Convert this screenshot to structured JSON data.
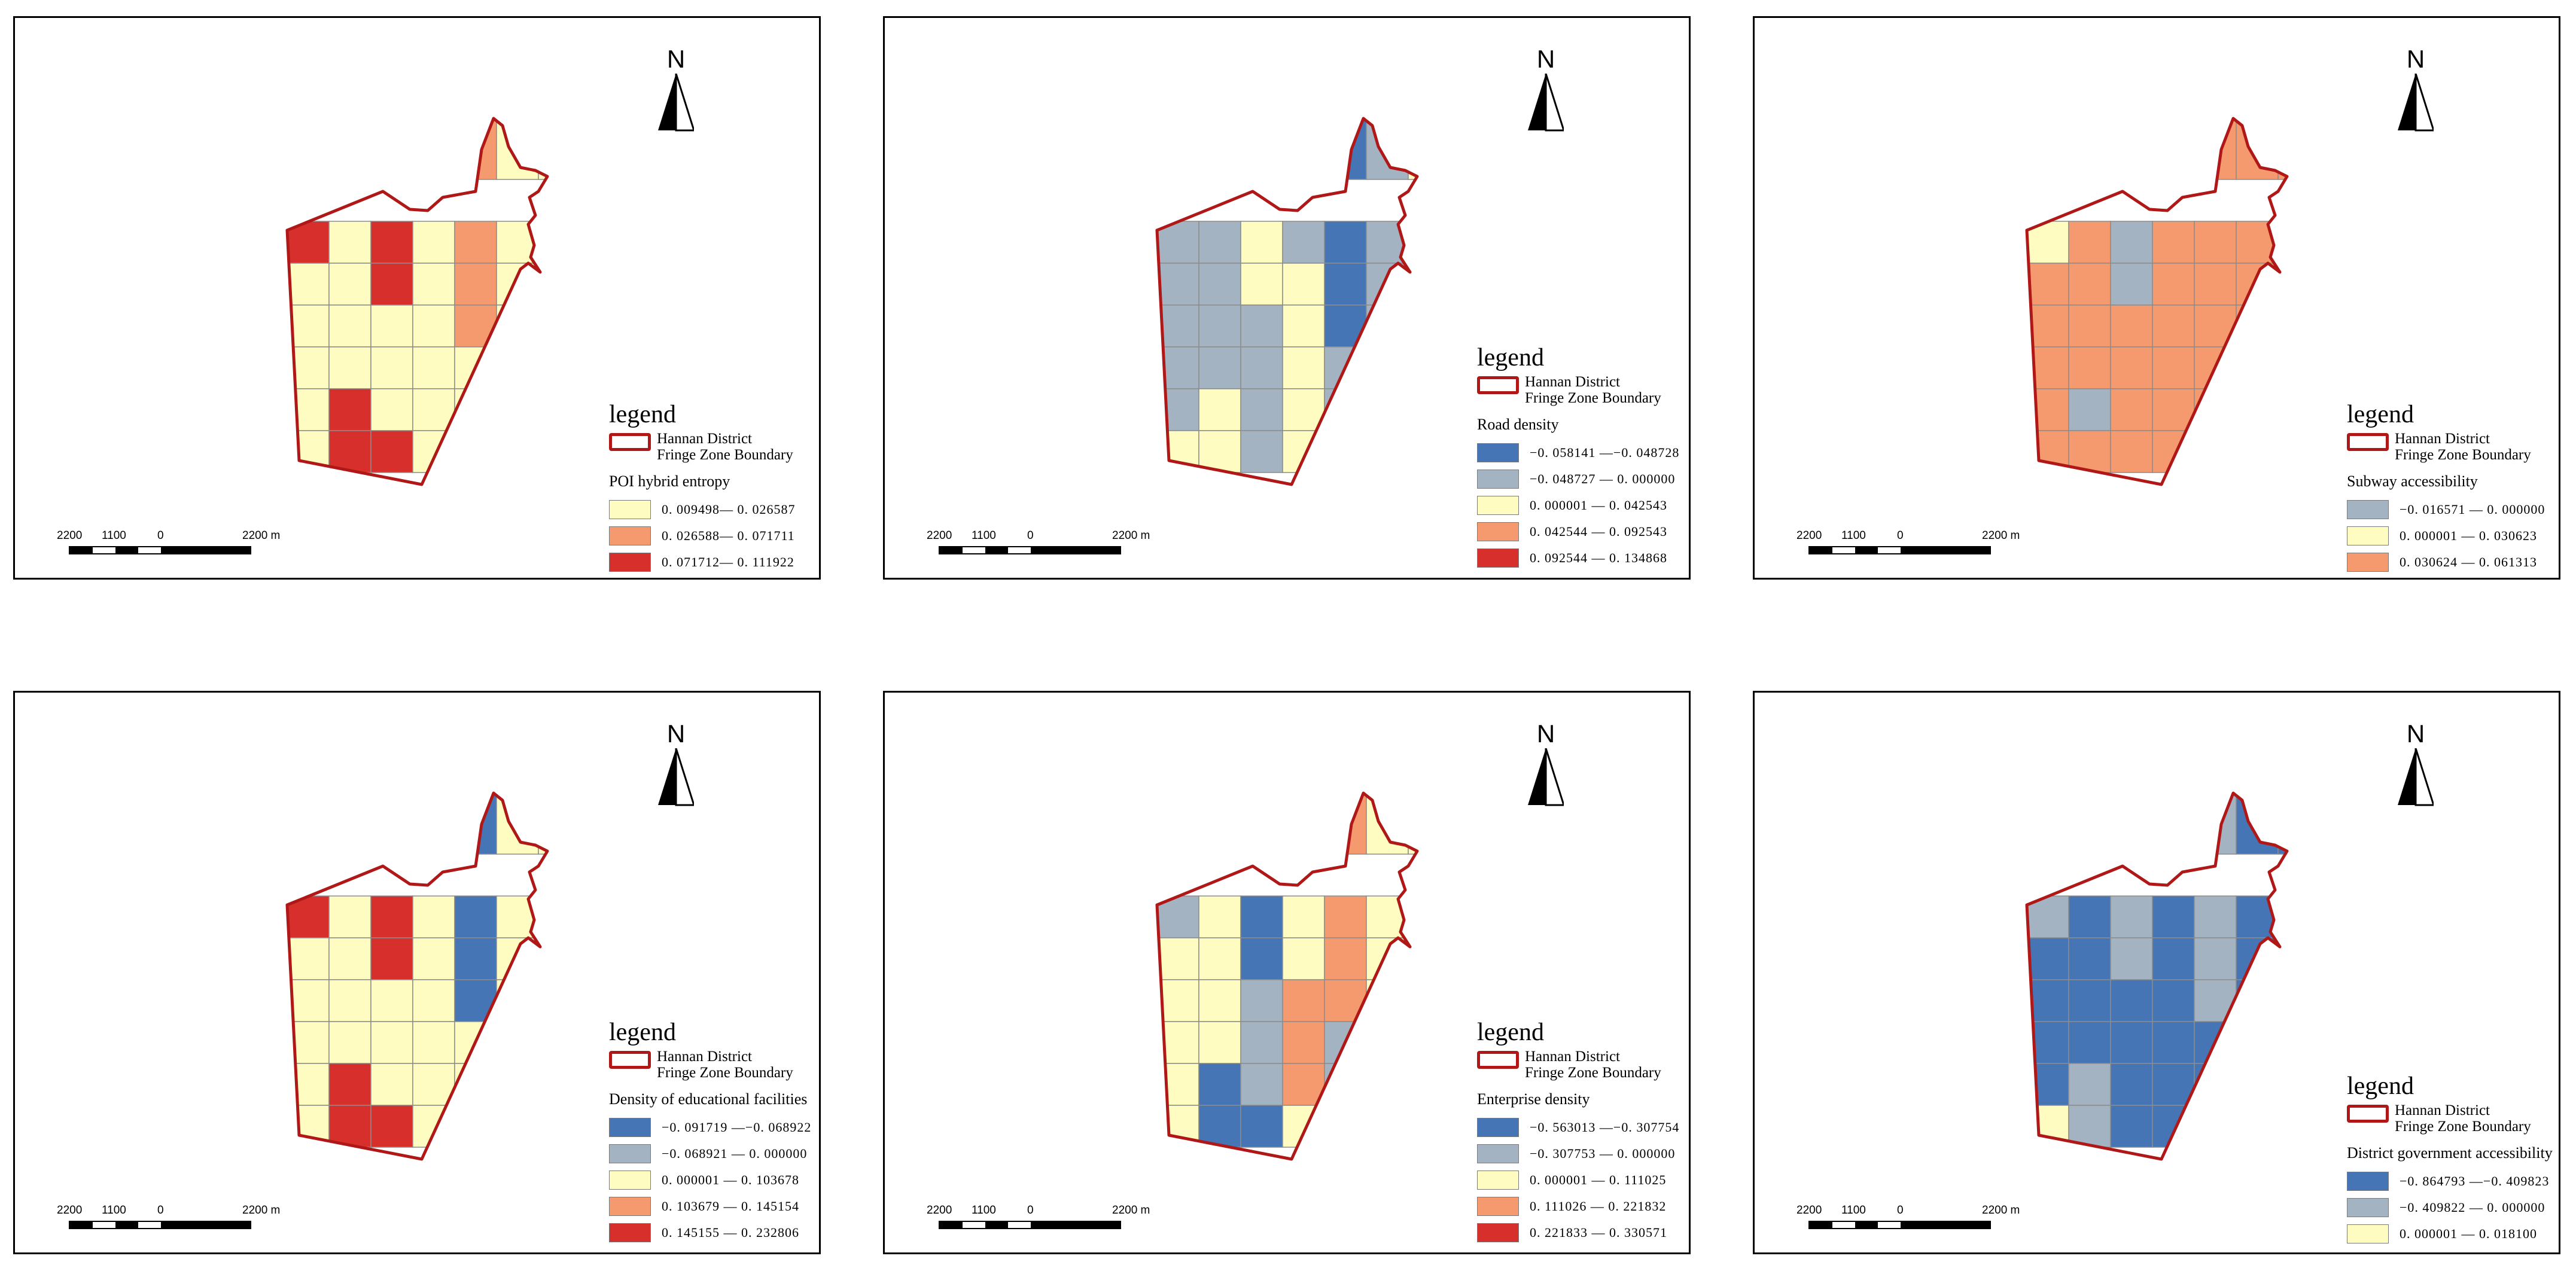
{
  "common": {
    "north_label": "N",
    "legend_title": "legend",
    "boundary_label_line1": "Hannan District",
    "boundary_label_line2": "Fringe Zone Boundary",
    "boundary_color": "#b01818",
    "scale_labels": [
      "2200",
      "1100",
      "0",
      "2200 m"
    ]
  },
  "colors": {
    "dark_blue": "#4575b4",
    "grey_blue": "#a4b3c1",
    "light_yellow": "#fefcc1",
    "salmon": "#f59a6e",
    "red": "#d7302c"
  },
  "panels": [
    {
      "variable": "POI hybrid entropy",
      "classes": [
        {
          "label": "0. 009498— 0. 026587",
          "color": "#fefcc1"
        },
        {
          "label": "0. 026588— 0. 071711",
          "color": "#f59a6e"
        },
        {
          "label": "0. 071712— 0. 111922",
          "color": "#d7302c"
        }
      ],
      "grid": [
        [
          "x",
          "x",
          "x",
          "x",
          "c",
          "c",
          "c",
          "c",
          "c"
        ],
        [
          "R",
          "y",
          "R",
          "y",
          "S",
          "y",
          "y",
          "y",
          "y"
        ],
        [
          "y",
          "y",
          "R",
          "y",
          "S",
          "y",
          "y",
          "y",
          "x"
        ],
        [
          "y",
          "y",
          "y",
          "y",
          "S",
          "y",
          "y",
          "x",
          "x"
        ],
        [
          "y",
          "y",
          "y",
          "y",
          "y",
          "y",
          "x",
          "x",
          "x"
        ],
        [
          "y",
          "R",
          "y",
          "y",
          "y",
          "x",
          "x",
          "x",
          "x"
        ],
        [
          "y",
          "R",
          "R",
          "y",
          "x",
          "x",
          "x",
          "x",
          "x"
        ]
      ]
    },
    {
      "variable": "Road density",
      "classes": [
        {
          "label": "−0. 058141 —−0. 048728",
          "color": "#4575b4"
        },
        {
          "label": "−0. 048727 — 0. 000000",
          "color": "#a4b3c1"
        },
        {
          "label": "0. 000001 — 0. 042543",
          "color": "#fefcc1"
        },
        {
          "label": "0. 042544 — 0. 092543",
          "color": "#f59a6e"
        },
        {
          "label": "0. 092544 — 0. 134868",
          "color": "#d7302c"
        }
      ],
      "grid": [
        [
          "x",
          "x",
          "x",
          "x",
          "c",
          "c",
          "c",
          "c",
          "c"
        ],
        [
          "G",
          "G",
          "y",
          "G",
          "B",
          "G",
          "y",
          "y",
          "y"
        ],
        [
          "G",
          "G",
          "y",
          "y",
          "B",
          "G",
          "y",
          "y",
          "x"
        ],
        [
          "G",
          "G",
          "G",
          "y",
          "B",
          "G",
          "y",
          "x",
          "x"
        ],
        [
          "G",
          "G",
          "G",
          "y",
          "G",
          "B",
          "x",
          "x",
          "x"
        ],
        [
          "G",
          "y",
          "G",
          "y",
          "G",
          "x",
          "x",
          "x",
          "x"
        ],
        [
          "y",
          "y",
          "G",
          "y",
          "x",
          "x",
          "x",
          "x",
          "x"
        ]
      ]
    },
    {
      "variable": "Subway accessibility",
      "classes": [
        {
          "label": "−0. 016571 — 0. 000000",
          "color": "#a4b3c1"
        },
        {
          "label": "0. 000001 — 0. 030623",
          "color": "#fefcc1"
        },
        {
          "label": "0. 030624 — 0. 061313",
          "color": "#f59a6e"
        }
      ],
      "grid": [
        [
          "x",
          "x",
          "x",
          "x",
          "c",
          "c",
          "c",
          "c",
          "c"
        ],
        [
          "y",
          "S",
          "G",
          "S",
          "S",
          "S",
          "S",
          "S",
          "S"
        ],
        [
          "S",
          "S",
          "G",
          "S",
          "S",
          "S",
          "S",
          "S",
          "x"
        ],
        [
          "S",
          "S",
          "S",
          "S",
          "S",
          "S",
          "S",
          "x",
          "x"
        ],
        [
          "S",
          "S",
          "S",
          "S",
          "S",
          "S",
          "x",
          "x",
          "x"
        ],
        [
          "S",
          "G",
          "S",
          "S",
          "S",
          "x",
          "x",
          "x",
          "x"
        ],
        [
          "S",
          "S",
          "S",
          "S",
          "x",
          "x",
          "x",
          "x",
          "x"
        ]
      ]
    },
    {
      "variable": "Density of educational facilities",
      "classes": [
        {
          "label": "−0. 091719 —−0. 068922",
          "color": "#4575b4"
        },
        {
          "label": "−0. 068921 — 0. 000000",
          "color": "#a4b3c1"
        },
        {
          "label": "0. 000001 — 0. 103678",
          "color": "#fefcc1"
        },
        {
          "label": "0. 103679 — 0. 145154",
          "color": "#f59a6e"
        },
        {
          "label": "0. 145155 — 0. 232806",
          "color": "#d7302c"
        }
      ],
      "grid": [
        [
          "x",
          "x",
          "x",
          "x",
          "c",
          "c",
          "c",
          "c",
          "c"
        ],
        [
          "R",
          "y",
          "R",
          "y",
          "B",
          "y",
          "y",
          "y",
          "B"
        ],
        [
          "y",
          "y",
          "R",
          "y",
          "B",
          "y",
          "y",
          "y",
          "x"
        ],
        [
          "y",
          "y",
          "y",
          "y",
          "B",
          "y",
          "y",
          "x",
          "x"
        ],
        [
          "y",
          "y",
          "y",
          "y",
          "y",
          "y",
          "x",
          "x",
          "x"
        ],
        [
          "y",
          "R",
          "y",
          "y",
          "y",
          "x",
          "x",
          "x",
          "x"
        ],
        [
          "y",
          "R",
          "R",
          "y",
          "x",
          "x",
          "x",
          "x",
          "x"
        ]
      ]
    },
    {
      "variable": "Enterprise density",
      "classes": [
        {
          "label": "−0. 563013 —−0. 307754",
          "color": "#4575b4"
        },
        {
          "label": "−0. 307753 — 0. 000000",
          "color": "#a4b3c1"
        },
        {
          "label": "0. 000001 — 0. 111025",
          "color": "#fefcc1"
        },
        {
          "label": "0. 111026 — 0. 221832",
          "color": "#f59a6e"
        },
        {
          "label": "0. 221833 — 0. 330571",
          "color": "#d7302c"
        }
      ],
      "grid": [
        [
          "x",
          "x",
          "x",
          "x",
          "c",
          "c",
          "c",
          "c",
          "c"
        ],
        [
          "G",
          "y",
          "B",
          "y",
          "S",
          "y",
          "y",
          "y",
          "S"
        ],
        [
          "y",
          "y",
          "B",
          "y",
          "S",
          "y",
          "y",
          "y",
          "x"
        ],
        [
          "y",
          "y",
          "G",
          "S",
          "S",
          "y",
          "y",
          "x",
          "x"
        ],
        [
          "y",
          "y",
          "G",
          "S",
          "G",
          "y",
          "x",
          "x",
          "x"
        ],
        [
          "y",
          "B",
          "G",
          "S",
          "G",
          "x",
          "x",
          "x",
          "x"
        ],
        [
          "y",
          "B",
          "B",
          "y",
          "x",
          "x",
          "x",
          "x",
          "x"
        ]
      ]
    },
    {
      "variable": "District government accessibility",
      "classes": [
        {
          "label": "−0. 864793 —−0. 409823",
          "color": "#4575b4"
        },
        {
          "label": "−0. 409822 — 0. 000000",
          "color": "#a4b3c1"
        },
        {
          "label": "0. 000001 — 0. 018100",
          "color": "#fefcc1"
        }
      ],
      "grid": [
        [
          "x",
          "x",
          "x",
          "x",
          "c",
          "c",
          "c",
          "c",
          "c"
        ],
        [
          "G",
          "B",
          "G",
          "B",
          "G",
          "B",
          "B",
          "B",
          "B"
        ],
        [
          "B",
          "B",
          "G",
          "B",
          "G",
          "B",
          "B",
          "B",
          "x"
        ],
        [
          "B",
          "B",
          "B",
          "B",
          "G",
          "B",
          "B",
          "x",
          "x"
        ],
        [
          "B",
          "B",
          "B",
          "B",
          "B",
          "B",
          "x",
          "x",
          "x"
        ],
        [
          "B",
          "G",
          "B",
          "B",
          "B",
          "x",
          "x",
          "x",
          "x"
        ],
        [
          "y",
          "G",
          "B",
          "B",
          "x",
          "x",
          "x",
          "x",
          "x"
        ]
      ]
    }
  ]
}
